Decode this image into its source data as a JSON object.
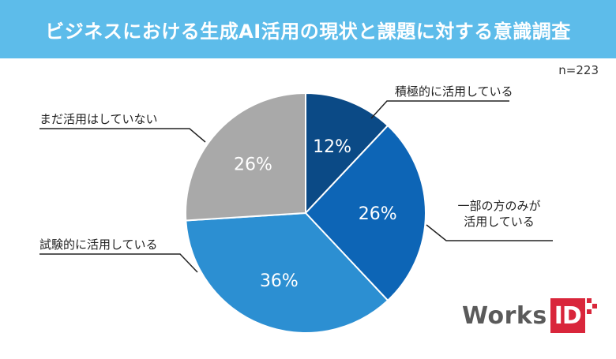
{
  "header": {
    "title": "ビジネスにおける生成AI活用の現状と課題に対する意識調査"
  },
  "sample_size": "n=223",
  "chart_data": {
    "type": "pie",
    "title": "ビジネスにおける生成AI活用の現状と課題に対する意識調査",
    "slices": [
      {
        "label": "積極的に活用している",
        "value": 12,
        "value_label": "12%",
        "color": "#0b4a86"
      },
      {
        "label": "一部の方のみが活用している",
        "label_lines": [
          "一部の方のみが",
          "活用している"
        ],
        "value": 26,
        "value_label": "26%",
        "color": "#0d65b6"
      },
      {
        "label": "試験的に活用している",
        "value": 36,
        "value_label": "36%",
        "color": "#2c8fd2"
      },
      {
        "label": "まだ活用はしていない",
        "value": 26,
        "value_label": "26%",
        "color": "#a9a9a9"
      }
    ],
    "start": "12 o'clock",
    "direction": "clockwise"
  },
  "logo": {
    "word": "Works",
    "box": "ID",
    "color": "#d9263b"
  }
}
